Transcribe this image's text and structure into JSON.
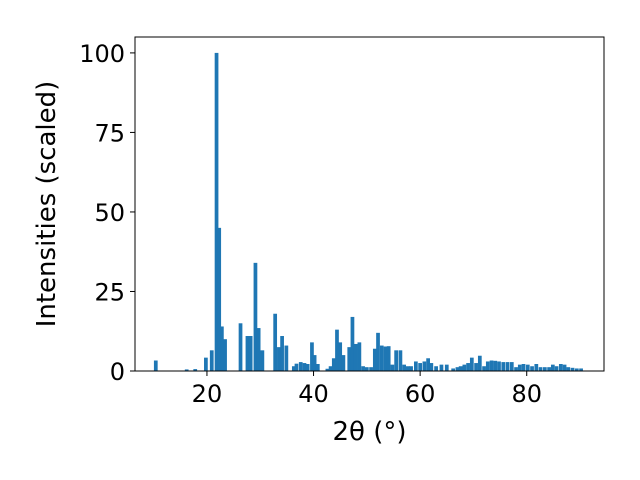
{
  "chart_data": {
    "type": "bar",
    "title": "",
    "xlabel": "2θ (°)",
    "ylabel": "Intensities (scaled)",
    "xlim": [
      6.5,
      94.5
    ],
    "ylim": [
      0,
      105
    ],
    "xticks": [
      20,
      40,
      60,
      80
    ],
    "yticks": [
      0,
      25,
      50,
      75,
      100
    ],
    "grid": false,
    "bar_color": "#1f77b4",
    "bar_width_deg": 0.7,
    "series": [
      {
        "x": [
          10.4,
          16.2,
          17.8,
          19.8,
          20.9,
          21.8,
          22.3,
          22.8,
          23.4,
          26.3,
          27.6,
          28.2,
          29.1,
          29.7,
          30.4,
          32.8,
          33.5,
          34.1,
          34.9,
          36.3,
          36.8,
          37.6,
          38.3,
          38.9,
          39.7,
          40.2,
          40.8,
          42.6,
          43.2,
          43.8,
          44.4,
          45.0,
          45.6,
          46.7,
          47.3,
          47.9,
          48.6,
          49.3,
          50.0,
          50.8,
          51.5,
          52.1,
          52.8,
          53.5,
          54.1,
          54.8,
          55.5,
          56.3,
          57.0,
          57.7,
          58.3,
          59.2,
          60.0,
          60.8,
          61.5,
          62.1,
          63.0,
          64.0,
          65.0,
          66.2,
          67.0,
          67.6,
          68.3,
          69.0,
          69.7,
          70.5,
          71.2,
          72.0,
          72.7,
          73.4,
          74.1,
          74.8,
          75.6,
          76.4,
          77.2,
          78.0,
          78.7,
          79.4,
          80.2,
          81.0,
          81.8,
          82.6,
          83.4,
          84.2,
          84.9,
          85.6,
          86.4,
          87.1,
          87.8,
          88.6,
          89.4,
          90.2
        ],
        "values": [
          3.3,
          0.5,
          0.6,
          4.2,
          6.5,
          100,
          45,
          14,
          10,
          15,
          11,
          11,
          34,
          13.5,
          6.5,
          18,
          7.5,
          11,
          8,
          1.5,
          2.3,
          2.8,
          2.5,
          2.2,
          9,
          5,
          2.2,
          0.7,
          1.5,
          4,
          13,
          9,
          5,
          7.5,
          17,
          8.5,
          9,
          1.5,
          1.2,
          1.2,
          7,
          12,
          8,
          7.7,
          7.8,
          2,
          6.5,
          6.5,
          2,
          1.5,
          1.5,
          3,
          2.5,
          3,
          4,
          2.5,
          1.5,
          2,
          2,
          0.8,
          1.2,
          1.5,
          2,
          2.5,
          4.2,
          2.5,
          4.8,
          1.5,
          3,
          3.3,
          3.2,
          3,
          2.8,
          2.8,
          2.8,
          1.2,
          2,
          2.2,
          2,
          1.5,
          2.2,
          1.2,
          1.2,
          1.2,
          2,
          1.5,
          2.2,
          2,
          1.2,
          1,
          0.8,
          0.8
        ]
      }
    ]
  }
}
